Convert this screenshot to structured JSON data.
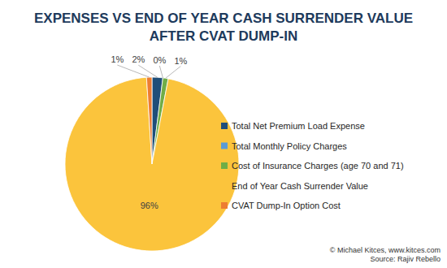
{
  "chart_data": {
    "type": "pie",
    "title": "EXPENSES VS END OF YEAR CASH SURRENDER VALUE AFTER CVAT DUMP-IN",
    "categories": [
      "Total Net Premium Load Expense",
      "Total Monthly Policy Charges",
      "Cost of Insurance Charges (age 70 and 71)",
      "End of Year Cash Surrender Value",
      "CVAT Dump-In Option Cost"
    ],
    "values": [
      2,
      0,
      1,
      96,
      1
    ],
    "value_labels": [
      "2%",
      "0%",
      "1%",
      "96%",
      "1%"
    ],
    "colors": [
      "#1f4e79",
      "#5b9bd5",
      "#70ad47",
      "#fbc43c",
      "#ed7d31"
    ],
    "data_labels": true,
    "legend": "right",
    "annotations": [
      "© Michael Kitces, www.kitces.com",
      "Source: Rajiv Rebello"
    ]
  }
}
